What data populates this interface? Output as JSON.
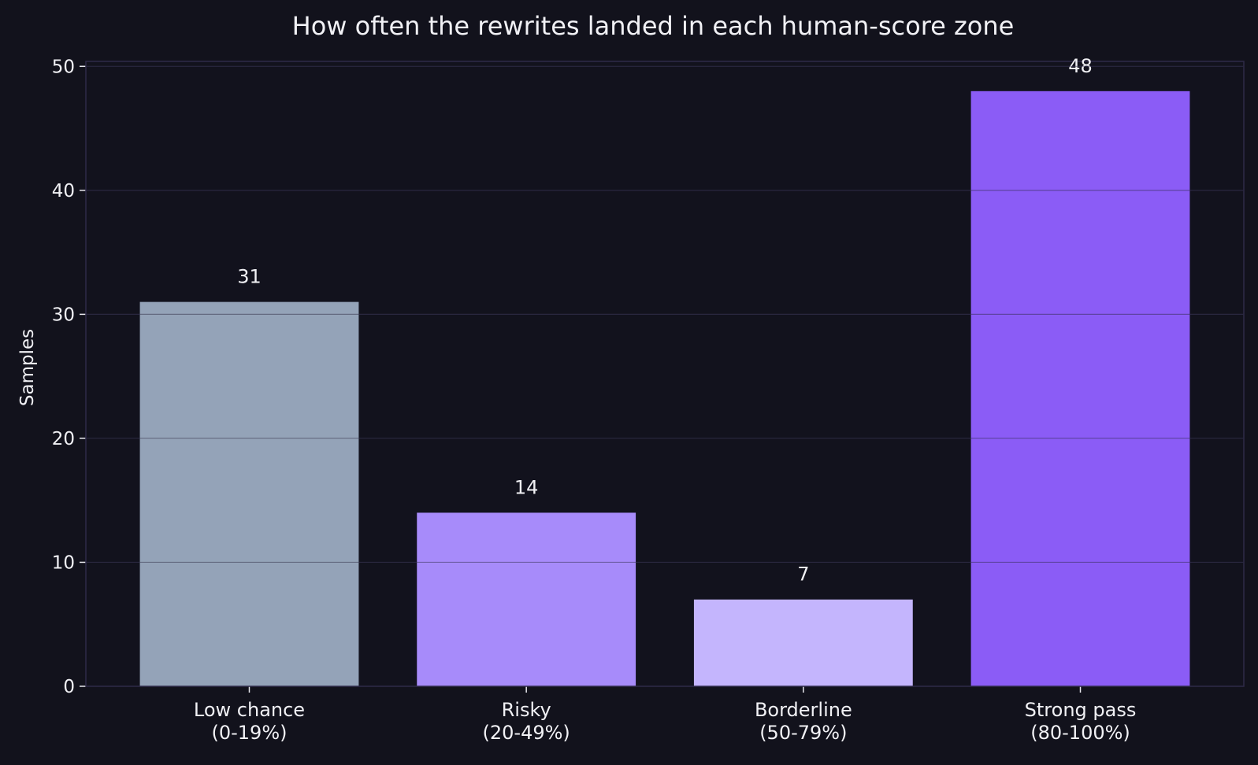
{
  "chart_data": {
    "type": "bar",
    "title": "How often the rewrites landed in each human-score zone",
    "xlabel": "",
    "ylabel": "Samples",
    "categories": [
      "Low chance\n(0-19%)",
      "Risky\n(20-49%)",
      "Borderline\n(50-79%)",
      "Strong pass\n(80-100%)"
    ],
    "values": [
      31,
      14,
      7,
      48
    ],
    "data_labels": [
      "31",
      "14",
      "7",
      "48"
    ],
    "colors": [
      "#94a3b8",
      "#a78bfa",
      "#c4b5fd",
      "#8b5cf6"
    ],
    "ylim": [
      0,
      50.4
    ],
    "yticks": [
      0,
      10,
      20,
      30,
      40,
      50
    ],
    "grid": "y",
    "background": "#12121c"
  }
}
